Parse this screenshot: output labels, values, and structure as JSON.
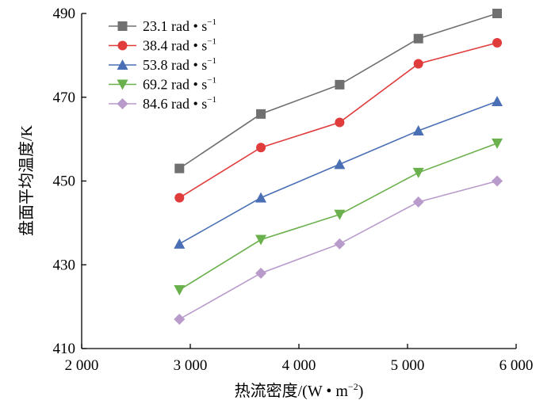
{
  "chart_data": {
    "type": "line",
    "x": [
      2900,
      3650,
      4375,
      5100,
      5825
    ],
    "series": [
      {
        "name": "23.1 rad • s",
        "unit_sup": "−1",
        "color": "#707070",
        "marker": "square",
        "values": [
          453,
          466,
          473,
          484,
          490
        ]
      },
      {
        "name": "38.4 rad • s",
        "unit_sup": "−1",
        "color": "#e03c3c",
        "marker": "circle",
        "values": [
          446,
          458,
          464,
          478,
          483
        ]
      },
      {
        "name": "53.8 rad • s",
        "unit_sup": "−1",
        "color": "#4a6fb5",
        "marker": "triangle-up",
        "values": [
          435,
          446,
          454,
          462,
          469
        ]
      },
      {
        "name": "69.2 rad • s",
        "unit_sup": "−1",
        "color": "#6ab04c",
        "marker": "triangle-down",
        "values": [
          424,
          436,
          442,
          452,
          459
        ]
      },
      {
        "name": "84.6 rad • s",
        "unit_sup": "−1",
        "color": "#b89acb",
        "marker": "diamond",
        "values": [
          417,
          428,
          435,
          445,
          450
        ]
      }
    ],
    "xlabel": "热流密度/(W • m",
    "xlabel_sup": "−2",
    "xlabel_end": ")",
    "ylabel": "盘面平均温度/K",
    "xlim": [
      2000,
      6000
    ],
    "ylim": [
      410,
      490
    ],
    "xticks": [
      2000,
      3000,
      4000,
      5000,
      6000
    ],
    "xtick_labels": [
      "2 000",
      "3 000",
      "4 000",
      "5 000",
      "6 000"
    ],
    "yticks": [
      410,
      430,
      450,
      470,
      490
    ],
    "ytick_labels": [
      "410",
      "430",
      "450",
      "470",
      "490"
    ],
    "grid": false,
    "legend_position": "top-left"
  }
}
